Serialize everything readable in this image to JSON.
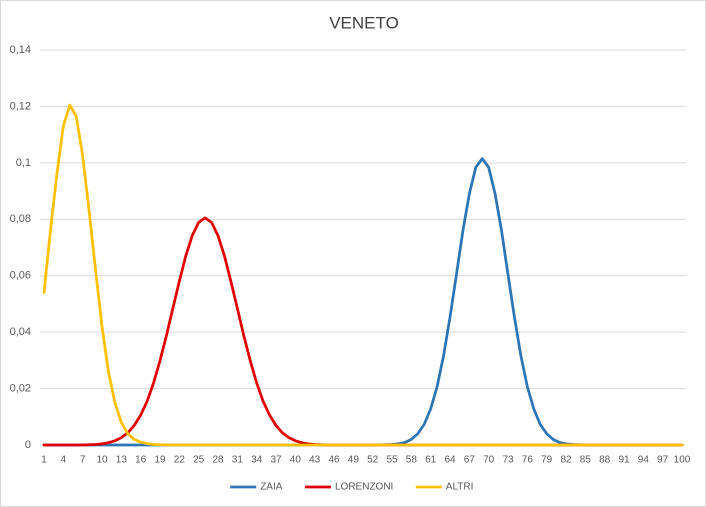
{
  "chart_data": {
    "type": "line",
    "title": "VENETO",
    "categories": [
      1,
      null,
      null,
      4,
      null,
      null,
      7,
      null,
      null,
      10,
      null,
      null,
      13,
      null,
      null,
      16,
      null,
      null,
      19,
      null,
      null,
      22,
      null,
      null,
      25,
      null,
      null,
      28,
      null,
      null,
      31,
      null,
      null,
      34,
      null,
      null,
      37,
      null,
      null,
      40,
      null,
      null,
      43,
      null,
      null,
      46,
      null,
      null,
      49,
      null,
      null,
      52,
      null,
      null,
      55,
      null,
      null,
      58,
      null,
      null,
      61,
      null,
      null,
      64,
      null,
      null,
      67,
      null,
      null,
      70,
      null,
      null,
      73,
      null,
      null,
      76,
      null,
      null,
      79,
      null,
      null,
      82,
      null,
      null,
      85,
      null,
      null,
      88,
      null,
      null,
      91,
      null,
      null,
      94,
      null,
      null,
      97,
      null,
      null,
      100
    ],
    "series": [
      {
        "name": "ZAIA",
        "color": "#2e75b6",
        "values": [
          0,
          0,
          0,
          0,
          0,
          0,
          0,
          0,
          0,
          0,
          0,
          0,
          0,
          0,
          0,
          0,
          0,
          0,
          0,
          0,
          0,
          0,
          0,
          0,
          0,
          0,
          0,
          0,
          0,
          0,
          0,
          0,
          0,
          0,
          0,
          0,
          0,
          0,
          0,
          0,
          0,
          0,
          0,
          0,
          0,
          0,
          0,
          0,
          0,
          0,
          0,
          0,
          0,
          0.0001,
          0.0002,
          0.0004,
          0.0009,
          0.002,
          0.004,
          0.0073,
          0.0128,
          0.0207,
          0.0316,
          0.0453,
          0.0604,
          0.0759,
          0.089,
          0.0984,
          0.1015,
          0.0984,
          0.089,
          0.0759,
          0.0604,
          0.0453,
          0.0316,
          0.0207,
          0.0128,
          0.0073,
          0.004,
          0.002,
          0.0009,
          0.0004,
          0.0002,
          0.0001,
          0,
          0,
          0,
          0,
          0,
          0,
          0,
          0,
          0,
          0,
          0,
          0,
          0,
          0,
          0,
          0
        ]
      },
      {
        "name": "LORENZONI",
        "color": "#e00000",
        "values": [
          0,
          0,
          0,
          0,
          0,
          0,
          0,
          0.0001,
          0.0002,
          0.0004,
          0.0008,
          0.0015,
          0.0026,
          0.0043,
          0.0069,
          0.0106,
          0.0155,
          0.022,
          0.0299,
          0.0388,
          0.0485,
          0.058,
          0.067,
          0.0742,
          0.0789,
          0.0805,
          0.0789,
          0.0742,
          0.067,
          0.058,
          0.0485,
          0.0388,
          0.0299,
          0.022,
          0.0155,
          0.0106,
          0.0069,
          0.0043,
          0.0026,
          0.0015,
          0.0008,
          0.0004,
          0.0002,
          0.0001,
          0,
          0,
          0,
          0,
          0,
          0,
          0,
          0,
          0,
          0,
          0,
          0,
          0,
          0,
          0,
          0,
          0,
          0,
          0,
          0,
          0,
          0,
          0,
          0,
          0,
          0,
          0,
          0,
          0,
          0,
          0,
          0,
          0,
          0,
          0,
          0,
          0,
          0,
          0,
          0,
          0,
          0,
          0,
          0,
          0,
          0,
          0,
          0,
          0,
          0,
          0,
          0,
          0,
          0,
          0,
          0
        ]
      },
      {
        "name": "ALTRI",
        "color": "#ffc000",
        "values": [
          0.054,
          0.076,
          0.096,
          0.113,
          0.1205,
          0.1165,
          0.1025,
          0.083,
          0.062,
          0.042,
          0.026,
          0.015,
          0.008,
          0.004,
          0.002,
          0.001,
          0.0005,
          0.0002,
          0.0001,
          0,
          0,
          0,
          0,
          0,
          0,
          0,
          0,
          0,
          0,
          0,
          0,
          0,
          0,
          0,
          0,
          0,
          0,
          0,
          0,
          0,
          0,
          0,
          0,
          0,
          0,
          0,
          0,
          0,
          0,
          0,
          0,
          0,
          0,
          0,
          0,
          0,
          0,
          0,
          0,
          0,
          0,
          0,
          0,
          0,
          0,
          0,
          0,
          0,
          0,
          0,
          0,
          0,
          0,
          0,
          0,
          0,
          0,
          0,
          0,
          0,
          0,
          0,
          0,
          0,
          0,
          0,
          0,
          0,
          0,
          0,
          0,
          0,
          0,
          0,
          0,
          0,
          0,
          0,
          0,
          0
        ]
      }
    ],
    "ylim": [
      0,
      0.14
    ],
    "yticks": [
      0,
      {
        "value": 0.02,
        "label": "0,02"
      },
      {
        "value": 0.04,
        "label": "0,04"
      },
      {
        "value": 0.06,
        "label": "0,06"
      },
      {
        "value": 0.08,
        "label": "0,08"
      },
      {
        "value": 0.1,
        "label": "0,1"
      },
      {
        "value": 0.12,
        "label": "0,12"
      },
      {
        "value": 0.14,
        "label": "0,14"
      }
    ],
    "grid": true,
    "legend": "bottom"
  }
}
